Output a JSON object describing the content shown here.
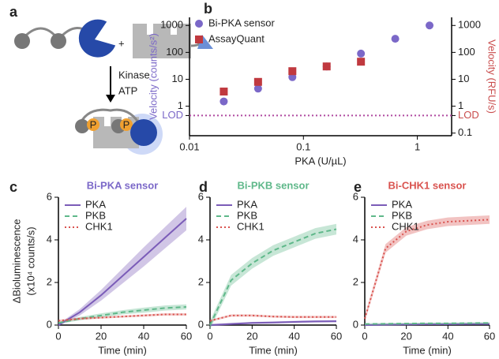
{
  "panel_a": {
    "label": "a",
    "plus": "+",
    "arrow_text": [
      "Kinase",
      "ATP"
    ],
    "phospho": [
      "P",
      "P"
    ]
  },
  "chart_data": [
    {
      "type": "scatter",
      "panel": "b",
      "xlog": true,
      "ylog": true,
      "xlabel": "PKA (U/µL)",
      "ylabel": "Velocity (counts/s²)",
      "y2label": "Velocity (RFU/s)",
      "ylabel_color": "#7b68c8",
      "y2label_color": "#c94c4c",
      "xlim": [
        0.01,
        2
      ],
      "xticks": [
        0.01,
        0.1,
        1
      ],
      "ylim": [
        0.08,
        2000
      ],
      "yticks": [
        {
          "value": 0.45,
          "label": "LOD"
        },
        1,
        10,
        100,
        1000
      ],
      "y2lim": [
        0.08,
        2000
      ],
      "y2ticks": [
        0.1,
        {
          "value": 0.45,
          "label": "LOD"
        },
        1,
        10,
        100,
        1000
      ],
      "hlines": [
        {
          "value": 0.45,
          "color": "#b04aa0"
        }
      ],
      "legend": "upper left",
      "series": [
        {
          "name": "Bi-PKA sensor",
          "color": "#7b68c8",
          "marker": "circle",
          "x": [
            0.02,
            0.04,
            0.08,
            0.16,
            0.32,
            0.64,
            1.28
          ],
          "values": [
            1.5,
            4.5,
            12,
            30,
            90,
            320,
            1000
          ]
        },
        {
          "name": "AssayQuant",
          "color": "#c0393f",
          "marker": "square",
          "axis": "y2",
          "x": [
            0.02,
            0.04,
            0.08,
            0.16,
            0.32
          ],
          "values": [
            3.5,
            8,
            20,
            30,
            45
          ]
        }
      ]
    },
    {
      "type": "line",
      "panel": "c",
      "title": "Bi-PKA sensor",
      "title_color": "#7b68c8",
      "xlabel": "Time (min)",
      "ylabel": [
        "ΔBioluminescence",
        "(x10⁴ counts/s)"
      ],
      "x": [
        0,
        10,
        20,
        30,
        40,
        50,
        60
      ],
      "xlim": [
        0,
        60
      ],
      "xticks": [
        0,
        20,
        40,
        60
      ],
      "ylim": [
        0,
        6
      ],
      "yticks": [
        0,
        2,
        4,
        6
      ],
      "legend": "upper left",
      "series": [
        {
          "name": "PKA",
          "color": "#7b5cb8",
          "dash": "solid",
          "values": [
            0,
            0.6,
            1.4,
            2.3,
            3.2,
            4.1,
            5.0
          ],
          "errors": [
            0.05,
            0.15,
            0.25,
            0.35,
            0.45,
            0.5,
            0.55
          ]
        },
        {
          "name": "PKB",
          "color": "#5fb88a",
          "dash": "dashed",
          "values": [
            0.1,
            0.3,
            0.45,
            0.6,
            0.7,
            0.8,
            0.85
          ],
          "errors": [
            0.05,
            0.08,
            0.1,
            0.1,
            0.12,
            0.12,
            0.12
          ]
        },
        {
          "name": "CHK1",
          "color": "#d9534f",
          "dash": "dotted",
          "values": [
            0.2,
            0.3,
            0.35,
            0.4,
            0.45,
            0.5,
            0.5
          ],
          "errors": [
            0.05,
            0.05,
            0.05,
            0.05,
            0.05,
            0.05,
            0.05
          ]
        }
      ]
    },
    {
      "type": "line",
      "panel": "d",
      "title": "Bi-PKB sensor",
      "title_color": "#5fb88a",
      "xlabel": "Time (min)",
      "x": [
        0,
        10,
        20,
        30,
        40,
        50,
        60
      ],
      "xlim": [
        0,
        60
      ],
      "xticks": [
        0,
        20,
        40,
        60
      ],
      "ylim": [
        0,
        6
      ],
      "yticks": [
        0,
        2,
        4,
        6
      ],
      "legend": "upper left",
      "series": [
        {
          "name": "PKA",
          "color": "#7b5cb8",
          "dash": "solid",
          "values": [
            0,
            0.05,
            0.1,
            0.12,
            0.15,
            0.17,
            0.18
          ],
          "errors": [
            0.05,
            0.05,
            0.05,
            0.05,
            0.05,
            0.05,
            0.05
          ]
        },
        {
          "name": "PKB",
          "color": "#5fb88a",
          "dash": "dashed",
          "values": [
            0,
            2.1,
            2.9,
            3.5,
            3.9,
            4.3,
            4.5
          ],
          "errors": [
            0.2,
            0.25,
            0.25,
            0.25,
            0.25,
            0.25,
            0.25
          ]
        },
        {
          "name": "CHK1",
          "color": "#d9534f",
          "dash": "dotted",
          "values": [
            0.2,
            0.45,
            0.45,
            0.4,
            0.38,
            0.38,
            0.38
          ],
          "errors": [
            0.05,
            0.05,
            0.05,
            0.05,
            0.05,
            0.05,
            0.05
          ]
        }
      ]
    },
    {
      "type": "line",
      "panel": "e",
      "title": "Bi-CHK1 sensor",
      "title_color": "#d9534f",
      "xlabel": "Time (min)",
      "x": [
        0,
        10,
        20,
        30,
        40,
        50,
        60
      ],
      "xlim": [
        0,
        60
      ],
      "xticks": [
        0,
        20,
        40,
        60
      ],
      "ylim": [
        0,
        6
      ],
      "yticks": [
        0,
        2,
        4,
        6
      ],
      "legend": "upper left",
      "series": [
        {
          "name": "PKA",
          "color": "#7b5cb8",
          "dash": "solid",
          "values": [
            0,
            0.02,
            0.03,
            0.04,
            0.04,
            0.05,
            0.05
          ],
          "errors": [
            0.04,
            0.04,
            0.04,
            0.04,
            0.04,
            0.04,
            0.04
          ]
        },
        {
          "name": "PKB",
          "color": "#5fb88a",
          "dash": "dashed",
          "values": [
            0.05,
            0.06,
            0.07,
            0.08,
            0.08,
            0.09,
            0.1
          ],
          "errors": [
            0.04,
            0.04,
            0.04,
            0.04,
            0.04,
            0.04,
            0.04
          ]
        },
        {
          "name": "CHK1",
          "color": "#d9534f",
          "dash": "dotted",
          "values": [
            0.3,
            3.6,
            4.4,
            4.7,
            4.85,
            4.9,
            4.95
          ],
          "errors": [
            0.15,
            0.2,
            0.2,
            0.2,
            0.2,
            0.2,
            0.2
          ]
        }
      ]
    }
  ]
}
